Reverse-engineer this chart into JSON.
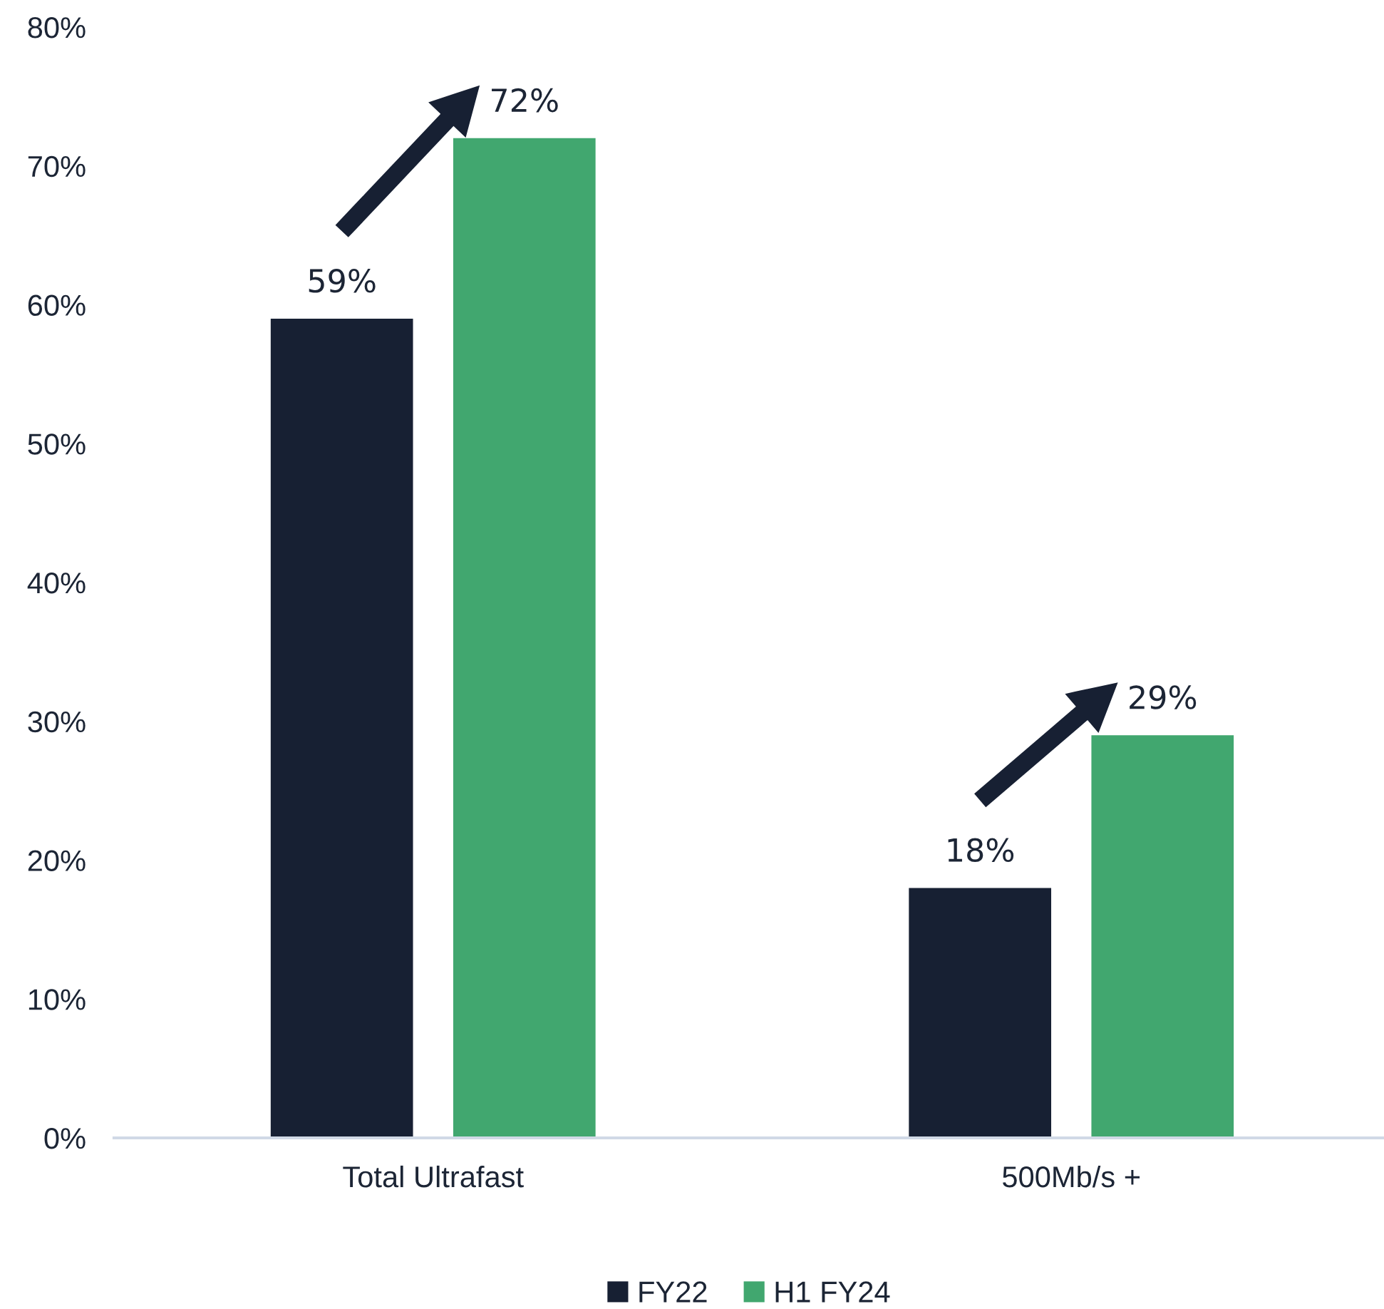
{
  "chart_data": {
    "type": "bar",
    "categories": [
      "Total Ultrafast",
      "500Mb/s +"
    ],
    "series": [
      {
        "name": "FY22",
        "color": "#172033",
        "values": [
          59,
          18
        ],
        "value_labels": [
          "59%",
          "18%"
        ]
      },
      {
        "name": "H1 FY24",
        "color": "#41a76f",
        "values": [
          72,
          29
        ],
        "value_labels": [
          "72%",
          "29%"
        ]
      }
    ],
    "ylim": [
      0,
      80
    ],
    "yticks": [
      {
        "value": 0,
        "label": "0%"
      },
      {
        "value": 10,
        "label": "10%"
      },
      {
        "value": 20,
        "label": "20%"
      },
      {
        "value": 30,
        "label": "30%"
      },
      {
        "value": 40,
        "label": "40%"
      },
      {
        "value": 50,
        "label": "50%"
      },
      {
        "value": 60,
        "label": "60%"
      },
      {
        "value": 70,
        "label": "70%"
      },
      {
        "value": 80,
        "label": "80%"
      }
    ],
    "legend": "bottom"
  }
}
